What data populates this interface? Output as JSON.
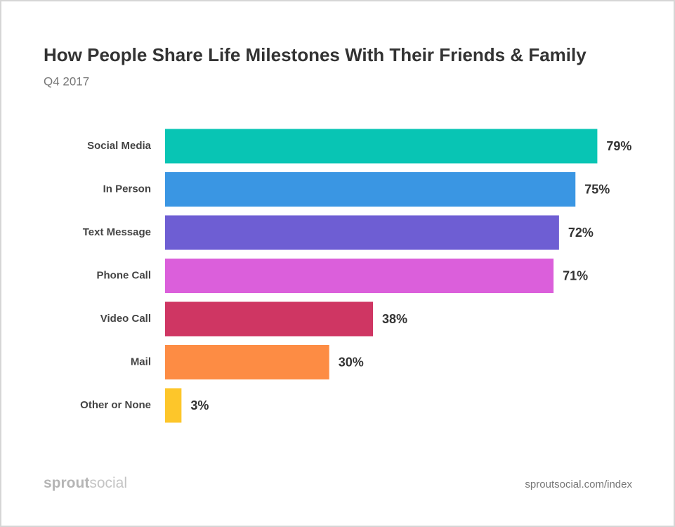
{
  "chart_data": {
    "type": "bar",
    "orientation": "horizontal",
    "title": "How People Share Life Milestones With Their Friends & Family",
    "subtitle": "Q4 2017",
    "categories": [
      "Social Media",
      "In Person",
      "Text Message",
      "Phone Call",
      "Video Call",
      "Mail",
      "Other or None"
    ],
    "values": [
      79,
      75,
      72,
      71,
      38,
      30,
      3
    ],
    "value_labels": [
      "79%",
      "75%",
      "72%",
      "71%",
      "38%",
      "30%",
      "3%"
    ],
    "colors": [
      "#08c5b4",
      "#3a96e3",
      "#6e5ed3",
      "#db5fdb",
      "#cf3663",
      "#fd8c44",
      "#fdc62a"
    ],
    "brand": [
      "sprout",
      "social"
    ],
    "source": "sproutsocial.com/index"
  }
}
